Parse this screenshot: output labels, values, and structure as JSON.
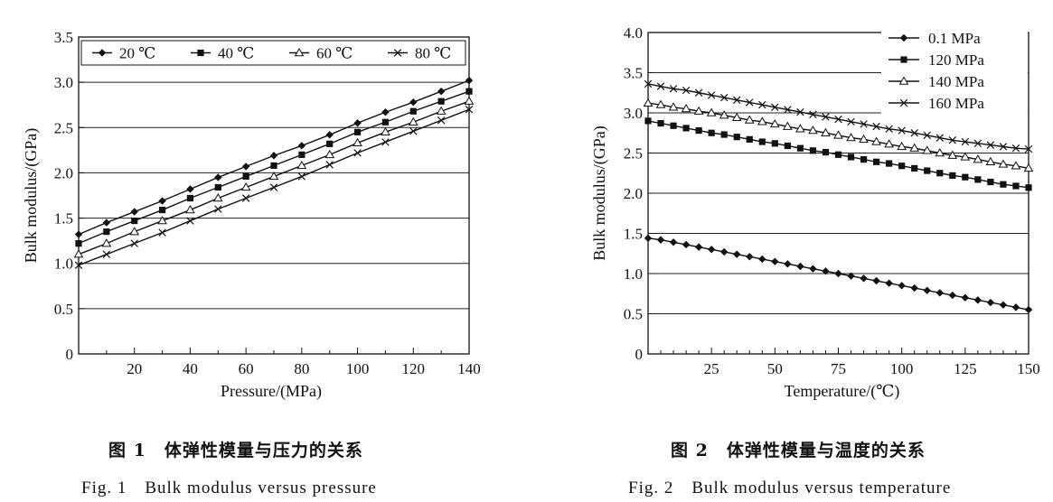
{
  "chart_data": [
    {
      "type": "line",
      "xlabel": "Pressure/(MPa)",
      "ylabel": "Bulk modulus/(GPa)",
      "xlim": [
        0,
        140
      ],
      "ylim": [
        0,
        3.5
      ],
      "xticks": [
        20,
        40,
        60,
        80,
        100,
        120,
        140
      ],
      "yticks": [
        0.5,
        1.0,
        1.5,
        2.0,
        2.5,
        3.0,
        3.5
      ],
      "ytick_labels": [
        "0.5",
        "1.0",
        "1.5",
        "2.0",
        "2.5",
        "3.0",
        "3.5"
      ],
      "origin_label": "0",
      "grid": "horizontal",
      "legend_position": "top",
      "x": [
        0,
        10,
        20,
        30,
        40,
        50,
        60,
        70,
        80,
        90,
        100,
        110,
        120,
        130,
        140
      ],
      "series": [
        {
          "name": "20 ℃",
          "marker": "diamond",
          "values": [
            1.32,
            1.45,
            1.57,
            1.69,
            1.82,
            1.95,
            2.07,
            2.19,
            2.3,
            2.42,
            2.55,
            2.67,
            2.78,
            2.9,
            3.02
          ]
        },
        {
          "name": "40 ℃",
          "marker": "square",
          "values": [
            1.22,
            1.35,
            1.47,
            1.59,
            1.72,
            1.84,
            1.96,
            2.08,
            2.2,
            2.32,
            2.45,
            2.56,
            2.68,
            2.79,
            2.9
          ]
        },
        {
          "name": "60 ℃",
          "marker": "triangle",
          "values": [
            1.1,
            1.22,
            1.35,
            1.47,
            1.59,
            1.72,
            1.84,
            1.96,
            2.08,
            2.2,
            2.33,
            2.45,
            2.56,
            2.68,
            2.79
          ]
        },
        {
          "name": "80 ℃",
          "marker": "x",
          "values": [
            0.98,
            1.1,
            1.22,
            1.34,
            1.47,
            1.6,
            1.72,
            1.84,
            1.96,
            2.09,
            2.22,
            2.34,
            2.46,
            2.58,
            2.7
          ]
        }
      ]
    },
    {
      "type": "line",
      "xlabel": "Temperature/(℃)",
      "ylabel": "Bulk modulus/(GPa)",
      "xlim": [
        0,
        150
      ],
      "ylim": [
        0,
        4.0
      ],
      "xticks": [
        25,
        50,
        75,
        100,
        125,
        150
      ],
      "yticks": [
        0.5,
        1.0,
        1.5,
        2.0,
        2.5,
        3.0,
        3.5,
        4.0
      ],
      "ytick_labels": [
        "0.5",
        "1.0",
        "1.5",
        "2.0",
        "2.5",
        "3.0",
        "3.5",
        "4.0"
      ],
      "origin_label": "0",
      "grid": "horizontal",
      "legend_position": "top-right",
      "x": [
        0,
        5,
        10,
        15,
        20,
        25,
        30,
        35,
        40,
        45,
        50,
        55,
        60,
        65,
        70,
        75,
        80,
        85,
        90,
        95,
        100,
        105,
        110,
        115,
        120,
        125,
        130,
        135,
        140,
        145,
        150
      ],
      "series": [
        {
          "name": "0.1 MPa",
          "marker": "diamond",
          "values": [
            1.44,
            1.42,
            1.39,
            1.36,
            1.33,
            1.3,
            1.27,
            1.24,
            1.21,
            1.18,
            1.15,
            1.12,
            1.09,
            1.06,
            1.03,
            1.0,
            0.97,
            0.94,
            0.91,
            0.88,
            0.85,
            0.82,
            0.79,
            0.76,
            0.73,
            0.7,
            0.67,
            0.64,
            0.61,
            0.58,
            0.55
          ]
        },
        {
          "name": "120 MPa",
          "marker": "square",
          "values": [
            2.9,
            2.87,
            2.84,
            2.81,
            2.78,
            2.75,
            2.73,
            2.7,
            2.67,
            2.64,
            2.62,
            2.59,
            2.56,
            2.53,
            2.51,
            2.48,
            2.45,
            2.42,
            2.39,
            2.37,
            2.34,
            2.31,
            2.28,
            2.25,
            2.22,
            2.2,
            2.17,
            2.14,
            2.11,
            2.09,
            2.07
          ]
        },
        {
          "name": "140 MPa",
          "marker": "triangle",
          "values": [
            3.12,
            3.1,
            3.07,
            3.05,
            3.02,
            3.0,
            2.97,
            2.94,
            2.91,
            2.89,
            2.86,
            2.83,
            2.8,
            2.78,
            2.75,
            2.72,
            2.69,
            2.67,
            2.64,
            2.61,
            2.58,
            2.56,
            2.53,
            2.5,
            2.47,
            2.45,
            2.42,
            2.39,
            2.36,
            2.34,
            2.31
          ]
        },
        {
          "name": "160 MPa",
          "marker": "x",
          "values": [
            3.36,
            3.33,
            3.3,
            3.28,
            3.25,
            3.22,
            3.19,
            3.16,
            3.13,
            3.1,
            3.07,
            3.04,
            3.01,
            2.98,
            2.95,
            2.92,
            2.89,
            2.86,
            2.83,
            2.8,
            2.78,
            2.75,
            2.72,
            2.69,
            2.66,
            2.64,
            2.62,
            2.6,
            2.58,
            2.56,
            2.55
          ]
        }
      ]
    }
  ],
  "captions": {
    "fig1_cn": "图 1　体弹性模量与压力的关系",
    "fig1_en": "Fig. 1　Bulk modulus versus pressure",
    "fig2_cn": "图 2　体弹性模量与温度的关系",
    "fig2_en": "Fig. 2　Bulk modulus versus temperature"
  }
}
